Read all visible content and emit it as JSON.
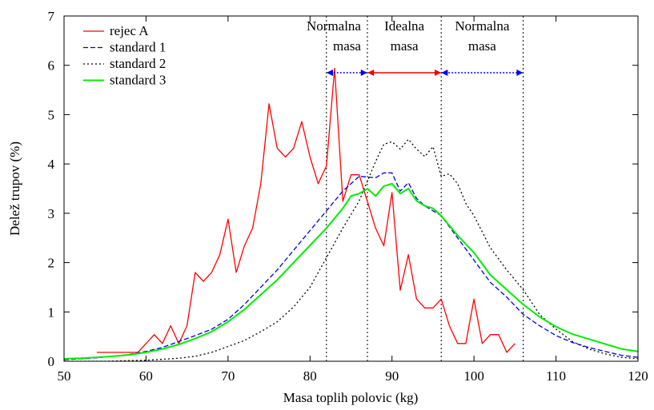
{
  "chart_data": {
    "type": "line",
    "title": "",
    "xlabel": "Masa toplih polovic (kg)",
    "ylabel": "Delež trupov (%)",
    "xlim": [
      50,
      120
    ],
    "ylim": [
      0,
      7
    ],
    "xticks": [
      "50",
      "60",
      "70",
      "80",
      "90",
      "100",
      "110",
      "120"
    ],
    "yticks": [
      "0",
      "1",
      "2",
      "3",
      "4",
      "5",
      "6",
      "7"
    ],
    "grid": false,
    "legend": "top-left",
    "series": [
      {
        "name": "rejec A",
        "color": "#ff0000",
        "dash": "solid",
        "x": [
          54,
          55,
          56,
          57,
          58,
          59,
          60,
          61,
          62,
          63,
          64,
          65,
          66,
          67,
          68,
          69,
          70,
          71,
          72,
          73,
          74,
          75,
          76,
          77,
          78,
          79,
          80,
          81,
          82,
          83,
          84,
          85,
          86,
          87,
          88,
          89,
          90,
          91,
          92,
          93,
          94,
          95,
          96,
          97,
          98,
          99,
          100,
          101,
          102,
          103,
          104,
          105
        ],
        "y": [
          0.18,
          0.18,
          0.18,
          0.18,
          0.18,
          0.18,
          0.36,
          0.54,
          0.36,
          0.72,
          0.36,
          0.72,
          1.8,
          1.62,
          1.8,
          2.16,
          2.88,
          1.8,
          2.34,
          2.7,
          3.6,
          5.22,
          4.32,
          4.14,
          4.32,
          4.86,
          4.14,
          3.6,
          3.96,
          5.94,
          3.24,
          3.78,
          3.78,
          3.24,
          2.7,
          2.34,
          3.42,
          1.44,
          2.16,
          1.26,
          1.08,
          1.08,
          1.26,
          0.72,
          0.36,
          0.36,
          1.26,
          0.36,
          0.54,
          0.54,
          0.18,
          0.36
        ]
      },
      {
        "name": "standard 1",
        "color": "#0000dd",
        "dash": "dashed",
        "x": [
          50,
          52,
          54,
          56,
          58,
          60,
          62,
          64,
          66,
          68,
          70,
          72,
          74,
          76,
          78,
          80,
          82,
          84,
          86,
          88,
          89,
          90,
          91,
          92,
          93,
          94,
          96,
          98,
          100,
          102,
          104,
          106,
          108,
          110,
          112,
          114,
          116,
          118,
          120
        ],
        "y": [
          0.03,
          0.05,
          0.07,
          0.1,
          0.14,
          0.2,
          0.28,
          0.4,
          0.52,
          0.65,
          0.85,
          1.15,
          1.5,
          1.85,
          2.25,
          2.65,
          3.05,
          3.45,
          3.75,
          3.72,
          3.82,
          3.82,
          3.45,
          3.62,
          3.3,
          3.15,
          2.95,
          2.5,
          2.05,
          1.6,
          1.3,
          0.95,
          0.72,
          0.52,
          0.38,
          0.28,
          0.2,
          0.12,
          0.08
        ]
      },
      {
        "name": "standard 2",
        "color": "#000000",
        "dash": "dotted",
        "x": [
          50,
          55,
          60,
          62,
          64,
          66,
          68,
          70,
          72,
          74,
          76,
          78,
          80,
          82,
          84,
          86,
          88,
          89,
          90,
          91,
          92,
          93,
          94,
          95,
          96,
          97,
          98,
          99,
          100,
          102,
          104,
          106,
          108,
          110,
          112,
          114,
          116,
          118,
          120
        ],
        "y": [
          0,
          0,
          0.02,
          0.04,
          0.06,
          0.1,
          0.18,
          0.3,
          0.42,
          0.6,
          0.8,
          1.1,
          1.5,
          2.1,
          2.7,
          3.25,
          4.05,
          4.4,
          4.45,
          4.3,
          4.5,
          4.3,
          4.15,
          4.35,
          3.75,
          3.8,
          3.6,
          3.2,
          2.95,
          2.3,
          1.85,
          1.45,
          0.95,
          0.65,
          0.4,
          0.25,
          0.15,
          0.08,
          0.05
        ]
      },
      {
        "name": "standard 3",
        "color": "#00ee00",
        "dash": "solid",
        "x": [
          50,
          52,
          54,
          56,
          58,
          60,
          62,
          64,
          66,
          68,
          70,
          72,
          74,
          76,
          78,
          80,
          82,
          84,
          85,
          86,
          87,
          88,
          89,
          90,
          91,
          92,
          93,
          94,
          95,
          96,
          98,
          100,
          102,
          104,
          106,
          108,
          110,
          112,
          114,
          116,
          118,
          120
        ],
        "y": [
          0.05,
          0.06,
          0.08,
          0.1,
          0.13,
          0.18,
          0.25,
          0.34,
          0.46,
          0.6,
          0.8,
          1.05,
          1.35,
          1.65,
          2.0,
          2.35,
          2.7,
          3.1,
          3.35,
          3.4,
          3.5,
          3.35,
          3.55,
          3.6,
          3.4,
          3.5,
          3.25,
          3.15,
          3.1,
          2.95,
          2.55,
          2.2,
          1.75,
          1.45,
          1.15,
          0.9,
          0.7,
          0.55,
          0.45,
          0.35,
          0.25,
          0.2
        ]
      }
    ],
    "reference_lines_x": [
      82,
      87,
      96,
      106
    ],
    "ranges": [
      {
        "label_lines": [
          "Normalna",
          "masa"
        ],
        "from": 82,
        "to": 87,
        "color": "#0000ee",
        "style": "dotted"
      },
      {
        "label_lines": [
          "Idealna",
          "masa"
        ],
        "from": 87,
        "to": 96,
        "color": "#ee0000",
        "style": "solid"
      },
      {
        "label_lines": [
          "Normalna",
          "masa"
        ],
        "from": 96,
        "to": 106,
        "color": "#0000ee",
        "style": "dotted"
      }
    ]
  }
}
